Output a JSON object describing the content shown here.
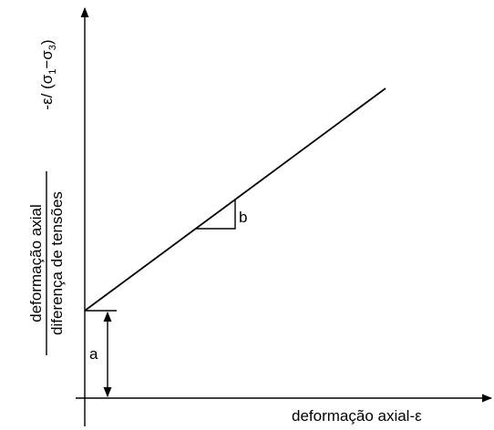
{
  "y_label": {
    "numerator": "deformação axial",
    "denominator": "diferença de tensões"
  },
  "y_symbol": {
    "prefix": "-ε/ (σ",
    "sub1": "1",
    "mid": "−σ",
    "sub2": "3",
    "suffix": ")"
  },
  "x_label": "deformação axial-ε",
  "annotations": {
    "intercept": "a",
    "slope": "b"
  }
}
